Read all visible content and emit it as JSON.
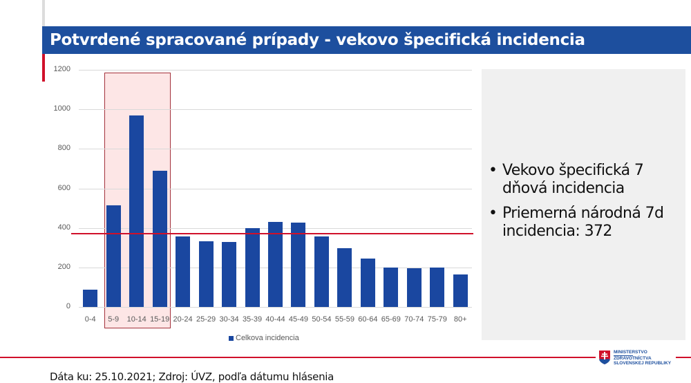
{
  "header": {
    "title": "Potvrdené spracované prípady - vekovo špecifická incidencia"
  },
  "chart_data": {
    "type": "bar",
    "title": "Potvrdené spracované prípady - vekovo špecifická incidencia",
    "categories": [
      "0-4",
      "5-9",
      "10-14",
      "15-19",
      "20-24",
      "25-29",
      "30-34",
      "35-39",
      "40-44",
      "45-49",
      "50-54",
      "55-59",
      "60-64",
      "65-69",
      "70-74",
      "75-79",
      "80+"
    ],
    "series": [
      {
        "name": "Celkova incidencia",
        "color": "#1a47a0",
        "values": [
          88,
          516,
          968,
          690,
          357,
          333,
          328,
          399,
          432,
          428,
          357,
          298,
          246,
          200,
          197,
          199,
          166
        ]
      }
    ],
    "reference_line": {
      "label": "Priemerná národná 7d incidencia",
      "value": 372,
      "color": "#d0102a"
    },
    "highlight": {
      "categories": [
        "5-9",
        "10-14",
        "15-19"
      ],
      "fill": "#fde6e6",
      "border": "#a3303a"
    },
    "xlabel": "",
    "ylabel": "",
    "ylim": [
      0,
      1200
    ],
    "yticks": [
      0,
      200,
      400,
      600,
      800,
      1000,
      1200
    ],
    "grid": true,
    "legend_position": "bottom"
  },
  "chart": {
    "yticks": [
      "0",
      "200",
      "400",
      "600",
      "800",
      "1000",
      "1200"
    ],
    "legend_label": "Celkova incidencia"
  },
  "info_panel": {
    "bullets": [
      "Vekovo špecifická 7 dňová incidencia",
      "Priemerná národná 7d incidencia: 372"
    ],
    "bullet_glyph": "•"
  },
  "footer": {
    "source_text": "Dáta ku: 25.10.2021; Zdroj: ÚVZ, podľa dátumu hlásenia",
    "logo_lines": [
      "MINISTERSTVO",
      "ZDRAVOTNÍCTVA",
      "SLOVENSKEJ REPUBLIKY"
    ]
  },
  "colors": {
    "title_bar": "#1d4f9e",
    "accent_red": "#d0102a",
    "bar": "#1a47a0",
    "panel_bg": "#f0f0f0"
  }
}
